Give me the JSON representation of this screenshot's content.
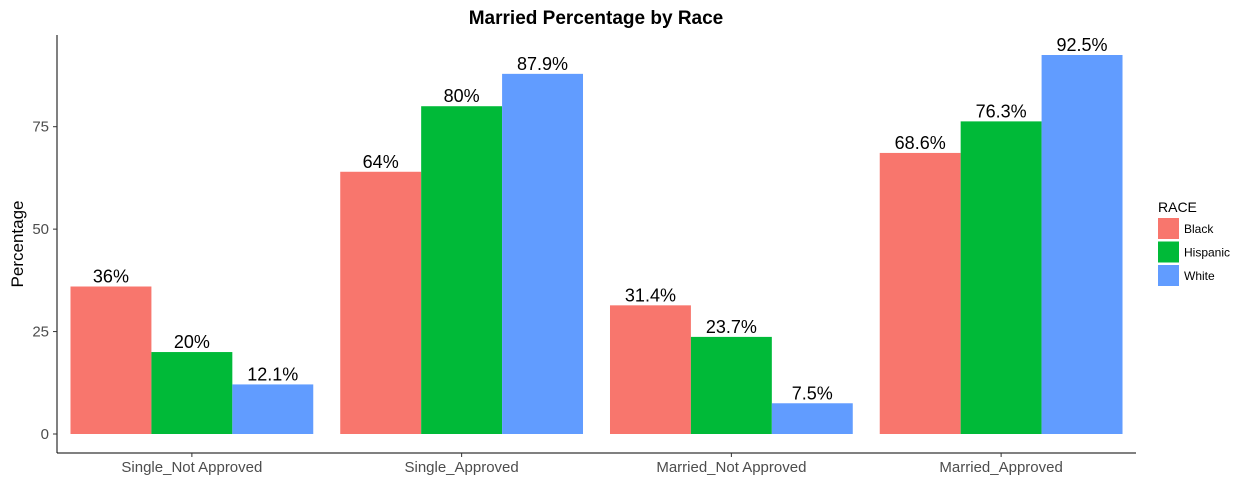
{
  "chart_data": {
    "type": "bar",
    "title": "Married Percentage by Race",
    "xlabel": "",
    "ylabel": "Percentage",
    "ylim": [
      0,
      97
    ],
    "yticks": [
      0,
      25,
      50,
      75
    ],
    "grid": false,
    "legend_position": "right",
    "legend_title": "RACE",
    "categories": [
      "Single_Not Approved",
      "Single_Approved",
      "Married_Not Approved",
      "Married_Approved"
    ],
    "series": [
      {
        "name": "Black",
        "color": "#F8766D",
        "values": [
          36,
          64,
          31.4,
          68.6
        ],
        "labels": [
          "36%",
          "64%",
          "31.4%",
          "68.6%"
        ]
      },
      {
        "name": "Hispanic",
        "color": "#00BA38",
        "values": [
          20,
          80,
          23.7,
          76.3
        ],
        "labels": [
          "20%",
          "80%",
          "23.7%",
          "76.3%"
        ]
      },
      {
        "name": "White",
        "color": "#619CFF",
        "values": [
          12.1,
          87.9,
          7.5,
          92.5
        ],
        "labels": [
          "12.1%",
          "87.9%",
          "7.5%",
          "92.5%"
        ]
      }
    ]
  }
}
